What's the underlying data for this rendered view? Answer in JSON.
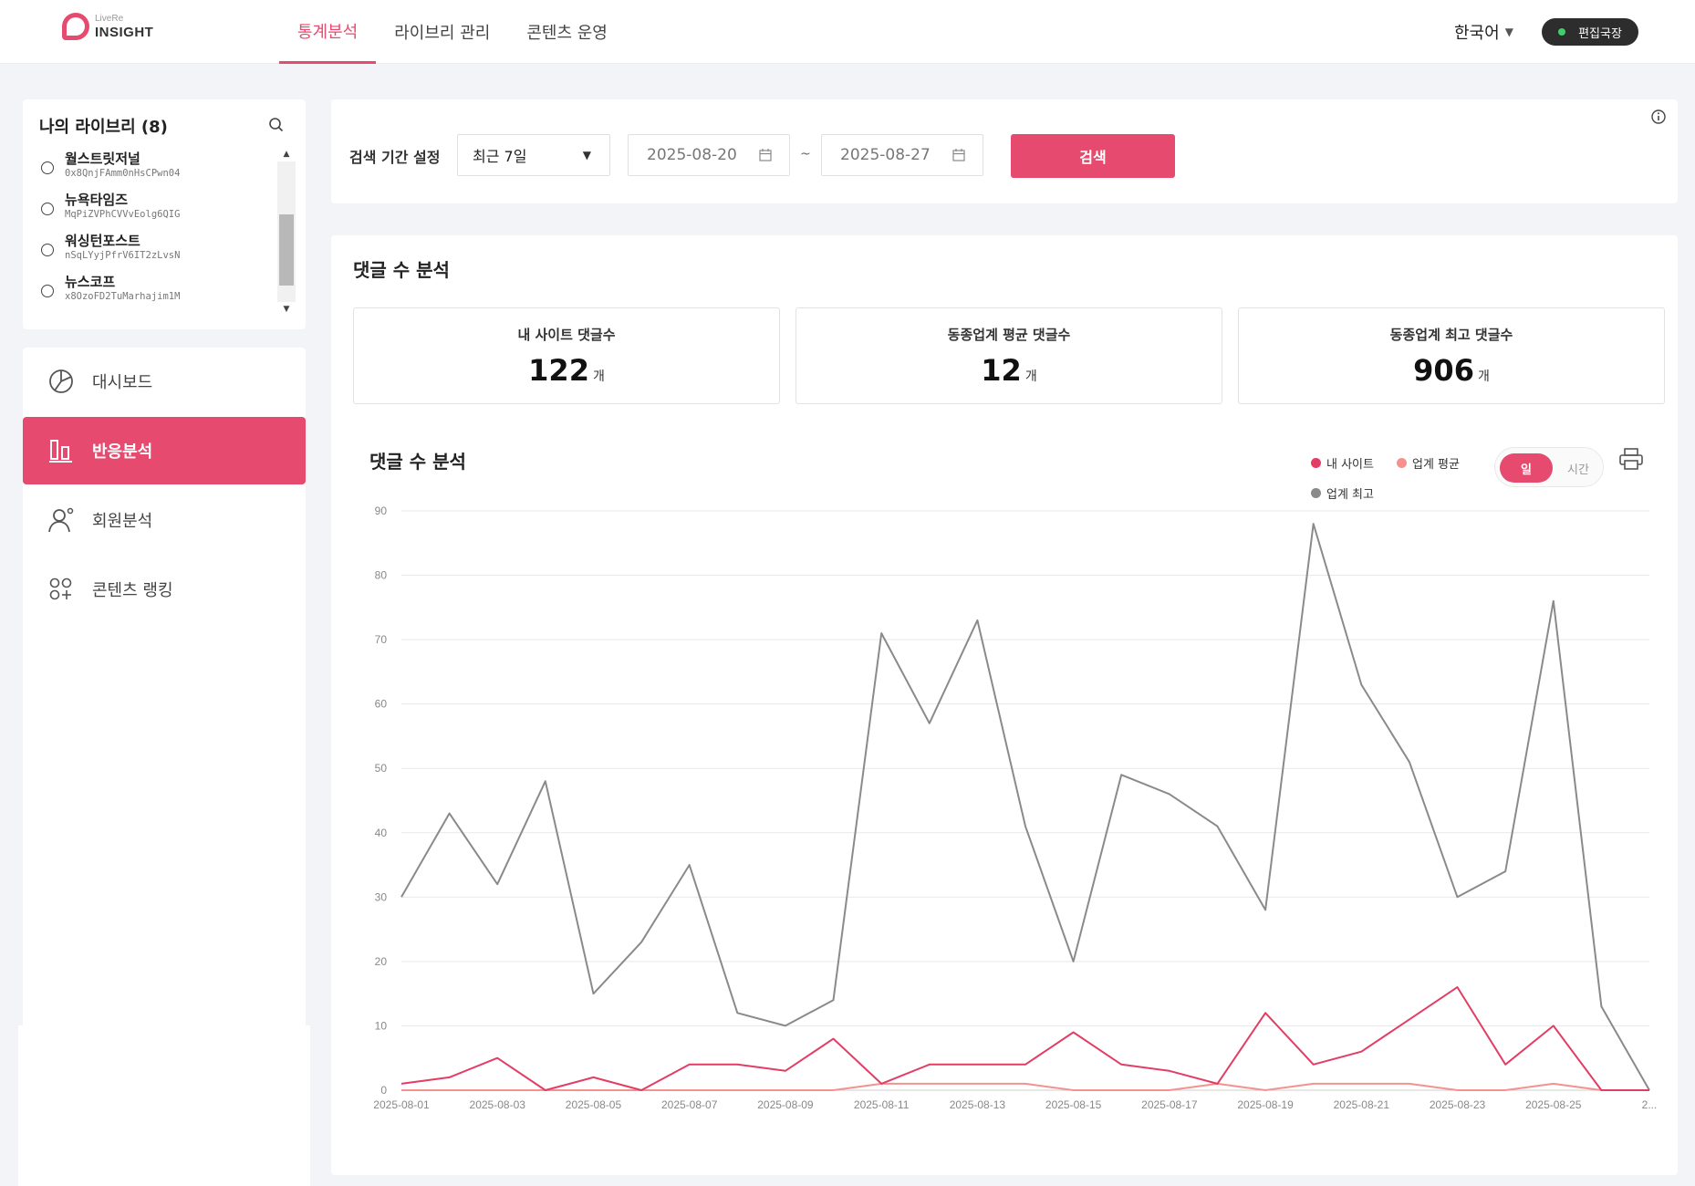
{
  "header": {
    "logo_small": "LiveRe",
    "logo_big": "INSIGHT",
    "nav": [
      {
        "label": "통계분석",
        "active": true
      },
      {
        "label": "라이브리 관리",
        "active": false
      },
      {
        "label": "콘텐츠 운영",
        "active": false
      }
    ],
    "language": "한국어",
    "user_role": "편집국장"
  },
  "library": {
    "title": "나의 라이브리 (8)",
    "items": [
      {
        "name": "월스트릿저널",
        "key": "0x8QnjFAmm0nHsCPwn04"
      },
      {
        "name": "뉴욕타임즈",
        "key": "MqPiZVPhCVVvEolg6QIG"
      },
      {
        "name": "워싱턴포스트",
        "key": "nSqLYyjPfrV6IT2zLvsN"
      },
      {
        "name": "뉴스코프",
        "key": "x8OzoFD2TuMarhajim1M"
      }
    ]
  },
  "sidebar": {
    "items": [
      {
        "label": "대시보드",
        "icon": "pie-chart-icon",
        "active": false
      },
      {
        "label": "반응분석",
        "icon": "bar-chart-icon",
        "active": true
      },
      {
        "label": "회원분석",
        "icon": "user-icon",
        "active": false
      },
      {
        "label": "콘텐츠 랭킹",
        "icon": "ranking-icon",
        "active": false
      }
    ]
  },
  "search": {
    "label": "검색 기간 설정",
    "period": "최근 7일",
    "start_date": "2025-08-20",
    "end_date": "2025-08-27",
    "separator": "~",
    "button": "검색"
  },
  "analysis": {
    "title": "댓글 수 분석",
    "stats": [
      {
        "label": "내 사이트 댓글수",
        "value": "122",
        "unit": "개"
      },
      {
        "label": "동종업계 평균 댓글수",
        "value": "12",
        "unit": "개"
      },
      {
        "label": "동종업계 최고 댓글수",
        "value": "906",
        "unit": "개"
      }
    ],
    "chart_title": "댓글 수 분석",
    "toggle": {
      "day": "일",
      "hour": "시간",
      "selected": "일"
    }
  },
  "chart_data": {
    "type": "line",
    "ylim": [
      0,
      90
    ],
    "yticks": [
      0,
      10,
      20,
      30,
      40,
      50,
      60,
      70,
      80,
      90
    ],
    "x": [
      "2025-08-01",
      "2025-08-02",
      "2025-08-03",
      "2025-08-04",
      "2025-08-05",
      "2025-08-06",
      "2025-08-07",
      "2025-08-08",
      "2025-08-09",
      "2025-08-10",
      "2025-08-11",
      "2025-08-12",
      "2025-08-13",
      "2025-08-14",
      "2025-08-15",
      "2025-08-16",
      "2025-08-17",
      "2025-08-18",
      "2025-08-19",
      "2025-08-20",
      "2025-08-21",
      "2025-08-22",
      "2025-08-23",
      "2025-08-24",
      "2025-08-25",
      "2025-08-26",
      "2025-08-27"
    ],
    "xtick_labels": [
      "2025-08-01",
      "2025-08-03",
      "2025-08-05",
      "2025-08-07",
      "2025-08-09",
      "2025-08-11",
      "2025-08-13",
      "2025-08-15",
      "2025-08-17",
      "2025-08-19",
      "2025-08-21",
      "2025-08-23",
      "2025-08-25",
      "2..."
    ],
    "grid": true,
    "legend_position": "top-right",
    "series": [
      {
        "name": "내 사이트",
        "color": "#e23d65",
        "values": [
          1,
          2,
          5,
          0,
          2,
          0,
          4,
          4,
          3,
          8,
          1,
          4,
          4,
          4,
          9,
          4,
          3,
          1,
          12,
          4,
          6,
          11,
          16,
          4,
          10,
          0,
          0
        ]
      },
      {
        "name": "업계 평균",
        "color": "#f4928f",
        "values": [
          0,
          0,
          0,
          0,
          0,
          0,
          0,
          0,
          0,
          0,
          1,
          1,
          1,
          1,
          0,
          0,
          0,
          1,
          0,
          1,
          1,
          1,
          0,
          0,
          1,
          0,
          0
        ]
      },
      {
        "name": "업계 최고",
        "color": "#8a8a8a",
        "values": [
          30,
          43,
          32,
          48,
          15,
          23,
          35,
          12,
          10,
          14,
          71,
          57,
          73,
          41,
          20,
          49,
          46,
          41,
          28,
          88,
          63,
          51,
          30,
          34,
          76,
          13,
          0
        ]
      }
    ]
  }
}
